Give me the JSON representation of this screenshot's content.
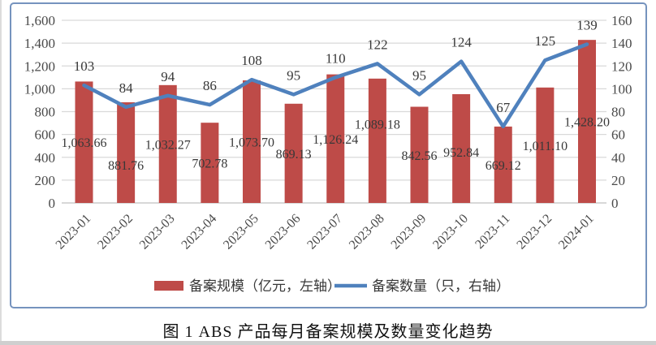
{
  "figure": {
    "caption": "图 1  ABS 产品每月备案规模及数量变化趋势"
  },
  "chart_data": {
    "type": "bar",
    "subtype": "bar-line-combo",
    "categories": [
      "2023-01",
      "2023-02",
      "2023-03",
      "2023-04",
      "2023-05",
      "2023-06",
      "2023-07",
      "2023-08",
      "2023-09",
      "2023-10",
      "2023-11",
      "2023-12",
      "2024-01"
    ],
    "series": [
      {
        "name": "备案规模（亿元，左轴）",
        "type": "bar",
        "axis": "left",
        "color": "#BE4B48",
        "values": [
          1063.66,
          881.76,
          1032.27,
          702.78,
          1073.7,
          869.13,
          1126.24,
          1089.18,
          842.56,
          952.84,
          669.12,
          1011.1,
          1428.2
        ],
        "label_decimals": 2
      },
      {
        "name": "备案数量（只，右轴）",
        "type": "line",
        "axis": "right",
        "color": "#4F81BD",
        "values": [
          103,
          84,
          94,
          86,
          108,
          95,
          110,
          122,
          95,
          124,
          67,
          125,
          139
        ],
        "label_decimals": 0
      }
    ],
    "left_axis": {
      "min": 0,
      "max": 1600,
      "step": 200
    },
    "right_axis": {
      "min": 0,
      "max": 160,
      "step": 20
    },
    "grid": true,
    "legend_position": "bottom",
    "colors": {
      "grid": "#D9D9D9",
      "baseline": "#C0C0C0",
      "axis_text": "#4A4A4A",
      "data_label_text": "#383838",
      "border": "#7593BE"
    }
  }
}
